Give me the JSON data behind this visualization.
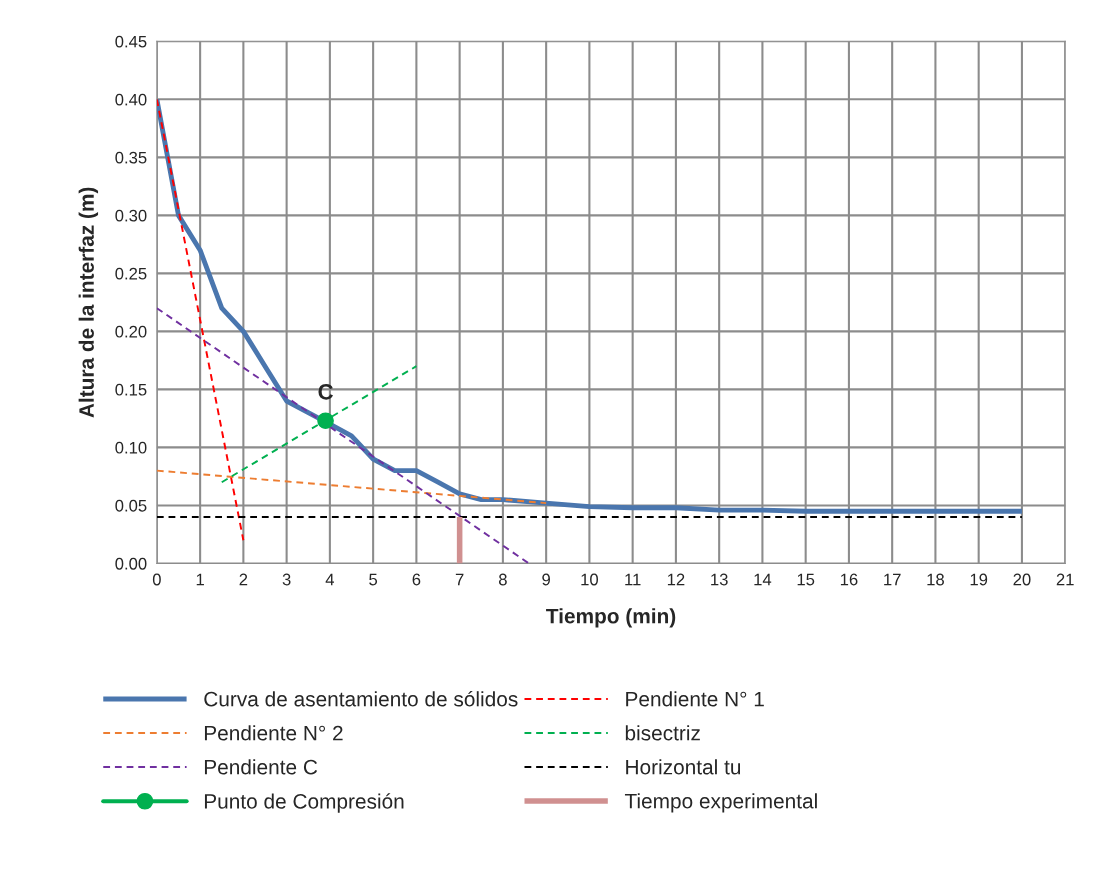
{
  "chart_data": {
    "type": "line",
    "xlabel": "Tiempo (min)",
    "ylabel": "Altura de la interfaz (m)",
    "xlim": [
      0,
      21
    ],
    "xticks": [
      0,
      1,
      2,
      3,
      4,
      5,
      6,
      7,
      8,
      9,
      10,
      11,
      12,
      13,
      14,
      15,
      16,
      17,
      18,
      19,
      20,
      21
    ],
    "ylim": [
      0,
      0.45
    ],
    "yticks": [
      {
        "value": 0,
        "label": "0.00"
      },
      {
        "value": 0.05,
        "label": "0.05"
      },
      {
        "value": 0.1,
        "label": "0.10"
      },
      {
        "value": 0.15,
        "label": "0.15"
      },
      {
        "value": 0.2,
        "label": "0.20"
      },
      {
        "value": 0.25,
        "label": "0.25"
      },
      {
        "value": 0.3,
        "label": "0.30"
      },
      {
        "value": 0.35,
        "label": "0.35"
      },
      {
        "value": 0.4,
        "label": "0.40"
      },
      {
        "value": 0.45,
        "label": "0.45"
      }
    ],
    "grid": true,
    "legend": "bottom",
    "annotations": [
      {
        "text": "C",
        "x": 3.9,
        "y": 0.123
      }
    ],
    "series": [
      {
        "name": "Curva de asentamiento de sólidos",
        "color": "#4a76ae",
        "line_style": "solid",
        "x": [
          0,
          0.5,
          1,
          1.5,
          2,
          2.5,
          3,
          3.5,
          4,
          4.5,
          5,
          5.5,
          6,
          6.5,
          7,
          7.5,
          8,
          9,
          10,
          11,
          12,
          13,
          14,
          15,
          16,
          17,
          18,
          19,
          20
        ],
        "values": [
          0.4,
          0.3,
          0.27,
          0.22,
          0.2,
          0.17,
          0.14,
          0.13,
          0.12,
          0.11,
          0.09,
          0.08,
          0.08,
          0.07,
          0.06,
          0.055,
          0.055,
          0.052,
          0.049,
          0.048,
          0.048,
          0.046,
          0.046,
          0.045,
          0.045,
          0.045,
          0.045,
          0.045,
          0.045
        ]
      },
      {
        "name": "Pendiente N° 1",
        "color": "#ff0000",
        "line_style": "dashed",
        "x": [
          0,
          2
        ],
        "values": [
          0.4,
          0.02
        ]
      },
      {
        "name": "Pendiente N° 2",
        "color": "#ed7d31",
        "line_style": "dashed",
        "x": [
          0,
          9
        ],
        "values": [
          0.08,
          0.052
        ]
      },
      {
        "name": "bisectriz",
        "color": "#00b050",
        "line_style": "dashed",
        "x": [
          1.5,
          6
        ],
        "values": [
          0.07,
          0.17
        ]
      },
      {
        "name": "Pendiente C",
        "color": "#7030a0",
        "line_style": "dashed",
        "x": [
          0,
          8.6
        ],
        "values": [
          0.22,
          0
        ]
      },
      {
        "name": "Horizontal tu",
        "color": "#000000",
        "line_style": "dashed",
        "x": [
          0,
          20
        ],
        "values": [
          0.04,
          0.04
        ]
      },
      {
        "name": "Punto de Compresión",
        "color": "#00b050",
        "line_style": "solid",
        "marker": "circle",
        "x": [
          3.9
        ],
        "values": [
          0.123
        ]
      },
      {
        "name": "Tiempo experimental",
        "color": "#d09090",
        "line_style": "solid",
        "x": [
          7,
          7
        ],
        "values": [
          0,
          0.04
        ]
      }
    ]
  }
}
